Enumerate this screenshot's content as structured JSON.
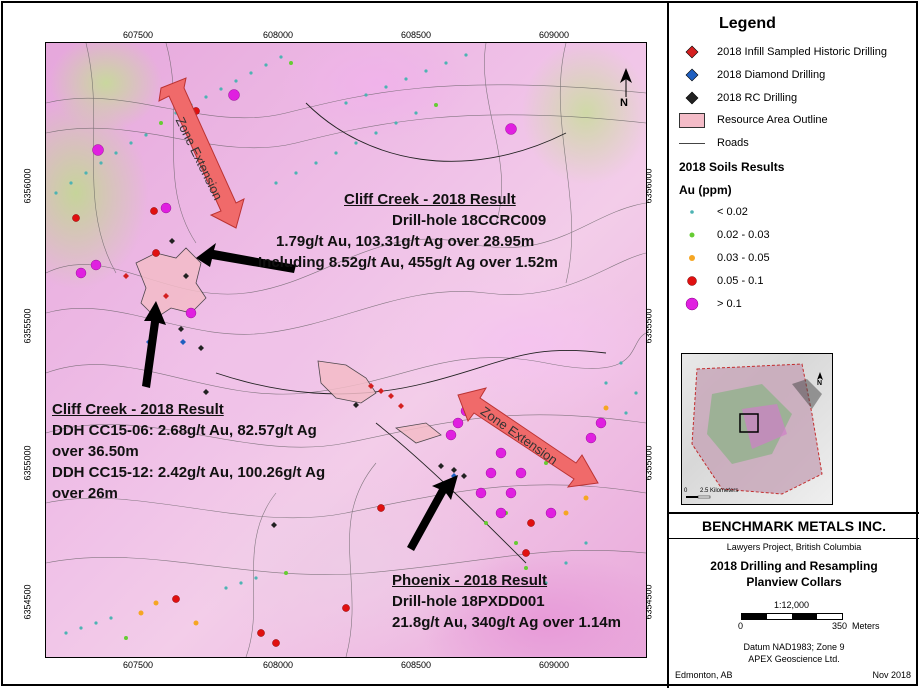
{
  "map": {
    "x_ticks": [
      "607500",
      "608000",
      "608500",
      "609000"
    ],
    "y_ticks": [
      "6356000",
      "6355500",
      "6355000",
      "6354500"
    ],
    "north_label": "N",
    "zone_labels": [
      "Zone Extension",
      "Zone Extension"
    ]
  },
  "annotations": {
    "cliff_creek_top": {
      "title": "Cliff Creek - 2018 Result",
      "line1": "Drill-hole  18CCRC009",
      "line2": "1.79g/t Au, 103.31g/t Ag over 28.95m",
      "line3": "Including  8.52g/t Au, 455g/t Ag over 1.52m"
    },
    "cliff_creek_left": {
      "title": "Cliff Creek - 2018 Result",
      "line1": "DDH CC15-06: 2.68g/t Au, 82.57g/t Ag",
      "line2": "over 36.50m",
      "line3": "DDH CC15-12: 2.42g/t Au, 100.26g/t Ag",
      "line4": "over 26m"
    },
    "phoenix": {
      "title": "Phoenix - 2018 Result",
      "line1": "Drill-hole  18PXDD001",
      "line2": "21.8g/t Au, 340g/t Ag over 1.14m"
    }
  },
  "legend": {
    "title": "Legend",
    "items": [
      {
        "label": "2018 Infill Sampled Historic Drilling",
        "color": "#d42020"
      },
      {
        "label": "2018 Diamond Drilling",
        "color": "#1f5fc0"
      },
      {
        "label": "2018 RC Drilling",
        "color": "#222222"
      },
      {
        "label": "Resource Area Outline",
        "color": "#f4bcc8"
      },
      {
        "label": "Roads",
        "color": "#444444"
      }
    ],
    "soils_heading": "2018 Soils Results",
    "soils_unit": "Au (ppm)",
    "soils": [
      {
        "label": "< 0.02",
        "color": "#4db3b3"
      },
      {
        "label": "0.02 - 0.03",
        "color": "#66cc33"
      },
      {
        "label": "0.03 - 0.05",
        "color": "#f5a623"
      },
      {
        "label": "0.05 - 0.1",
        "color": "#e01010"
      },
      {
        "label": "> 0.1",
        "color": "#e020e0"
      }
    ],
    "inset_scale": "2.5 Kilometers",
    "inset_scale_zero": "0",
    "inset_north": "N"
  },
  "title_block": {
    "company": "BENCHMARK METALS INC.",
    "project": "Lawyers Project, British Columbia",
    "title1": "2018 Drilling and Resampling",
    "title2": "Planview Collars",
    "scale_ratio": "1:12,000",
    "scale_zero": "0",
    "scale_max": "350",
    "scale_unit": "Meters",
    "datum": "Datum NAD1983; Zone 9",
    "firm": "APEX Geoscience Ltd.",
    "location": "Edmonton, AB",
    "date": "Nov 2018"
  }
}
